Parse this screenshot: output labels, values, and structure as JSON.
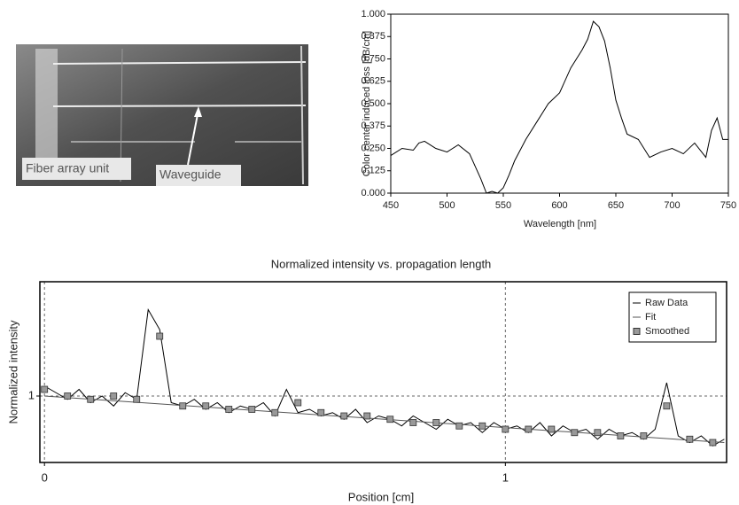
{
  "photo": {
    "labels": [
      "Fiber array unit",
      "Waveguide"
    ]
  },
  "chart_data": [
    {
      "type": "line",
      "ylabel": "Color center induced loss [dB/cm]",
      "xlabel": "Wavelength [nm]",
      "color": "#000000",
      "x": [
        450,
        460,
        470,
        475,
        480,
        490,
        500,
        510,
        520,
        525,
        530,
        535,
        540,
        545,
        550,
        555,
        560,
        570,
        580,
        590,
        600,
        610,
        620,
        625,
        630,
        635,
        640,
        645,
        650,
        655,
        660,
        670,
        680,
        690,
        700,
        710,
        720,
        730,
        735,
        740,
        745,
        750
      ],
      "values": [
        0.21,
        0.25,
        0.24,
        0.28,
        0.29,
        0.25,
        0.23,
        0.27,
        0.22,
        0.15,
        0.08,
        0.0,
        0.01,
        0.0,
        0.03,
        0.1,
        0.18,
        0.3,
        0.4,
        0.5,
        0.56,
        0.7,
        0.8,
        0.86,
        0.96,
        0.93,
        0.85,
        0.7,
        0.52,
        0.42,
        0.33,
        0.3,
        0.2,
        0.23,
        0.25,
        0.22,
        0.28,
        0.2,
        0.35,
        0.42,
        0.3,
        0.3
      ],
      "xlim": [
        450,
        750
      ],
      "xticks": [
        450,
        500,
        550,
        600,
        650,
        700,
        750
      ],
      "ylim": [
        0,
        1
      ],
      "yticks": [
        {
          "value": 0,
          "label": "0.000"
        },
        {
          "value": 0.125,
          "label": "0.125"
        },
        {
          "value": 0.25,
          "label": "0.250"
        },
        {
          "value": 0.375,
          "label": "0.375"
        },
        {
          "value": 0.5,
          "label": "0.500"
        },
        {
          "value": 0.625,
          "label": "0.625"
        },
        {
          "value": 0.75,
          "label": "0.750"
        },
        {
          "value": 0.875,
          "label": "0.875"
        },
        {
          "value": 1,
          "label": "1.000"
        }
      ]
    },
    {
      "type": "line",
      "title": "Normalized intensity vs. propagation length",
      "xlabel": "Position [cm]",
      "ylabel": "Normalized intensity",
      "xlim": [
        -0.01,
        1.48
      ],
      "xticks": [
        0,
        1
      ],
      "ylim": [
        0.8,
        1.344
      ],
      "yticks": [
        1
      ],
      "grid": true,
      "legend": "top-right",
      "series": [
        {
          "name": "Raw Data",
          "color": "#000000",
          "marker": "none",
          "x": [
            0,
            0.025,
            0.05,
            0.075,
            0.1,
            0.125,
            0.15,
            0.175,
            0.2,
            0.225,
            0.25,
            0.275,
            0.3,
            0.325,
            0.35,
            0.375,
            0.4,
            0.425,
            0.45,
            0.475,
            0.5,
            0.525,
            0.55,
            0.575,
            0.6,
            0.625,
            0.65,
            0.675,
            0.7,
            0.725,
            0.75,
            0.775,
            0.8,
            0.825,
            0.85,
            0.875,
            0.9,
            0.925,
            0.95,
            0.975,
            1.0,
            1.025,
            1.05,
            1.075,
            1.1,
            1.125,
            1.15,
            1.175,
            1.2,
            1.225,
            1.25,
            1.275,
            1.3,
            1.325,
            1.35,
            1.375,
            1.4,
            1.425,
            1.45,
            1.475
          ],
          "values": [
            1.03,
            1.01,
            0.99,
            1.02,
            0.98,
            1.0,
            0.97,
            1.01,
            0.99,
            1.26,
            1.2,
            0.98,
            0.97,
            0.99,
            0.96,
            0.98,
            0.95,
            0.97,
            0.96,
            0.98,
            0.94,
            1.02,
            0.95,
            0.96,
            0.94,
            0.95,
            0.93,
            0.96,
            0.92,
            0.94,
            0.93,
            0.91,
            0.94,
            0.92,
            0.9,
            0.93,
            0.91,
            0.92,
            0.89,
            0.92,
            0.9,
            0.91,
            0.89,
            0.92,
            0.88,
            0.91,
            0.89,
            0.9,
            0.87,
            0.9,
            0.88,
            0.89,
            0.87,
            0.9,
            1.04,
            0.88,
            0.86,
            0.88,
            0.85,
            0.87
          ]
        },
        {
          "name": "Fit",
          "color": "#555555",
          "marker": "none",
          "x": [
            0,
            1.475
          ],
          "values": [
            1.0,
            0.86
          ]
        },
        {
          "name": "Smoothed",
          "color": "#999999",
          "marker": "square",
          "x": [
            0,
            0.05,
            0.1,
            0.15,
            0.2,
            0.25,
            0.3,
            0.35,
            0.4,
            0.45,
            0.5,
            0.55,
            0.6,
            0.65,
            0.7,
            0.75,
            0.8,
            0.85,
            0.9,
            0.95,
            1.0,
            1.05,
            1.1,
            1.15,
            1.2,
            1.25,
            1.3,
            1.35,
            1.4,
            1.45
          ],
          "values": [
            1.02,
            1.0,
            0.99,
            1.0,
            0.99,
            1.18,
            0.97,
            0.97,
            0.96,
            0.96,
            0.95,
            0.98,
            0.95,
            0.94,
            0.94,
            0.93,
            0.92,
            0.92,
            0.91,
            0.91,
            0.9,
            0.9,
            0.9,
            0.89,
            0.89,
            0.88,
            0.88,
            0.97,
            0.87,
            0.86
          ]
        }
      ]
    }
  ]
}
